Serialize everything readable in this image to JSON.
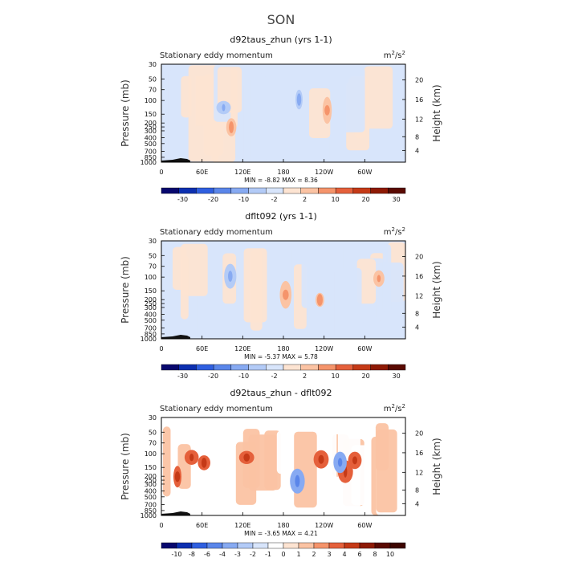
{
  "title": "SON",
  "units_base": "m",
  "units_sup1": "2",
  "units_mid": "/s",
  "units_sup2": "2",
  "colors": {
    "text": "#222222",
    "terrain": "#111111"
  },
  "chart_data": [
    {
      "type": "heatmap",
      "panel_title": "d92taus_zhun (yrs 1-1)",
      "left_label": "Stationary eddy momentum",
      "ylabel": "Pressure (mb)",
      "ylabel_right": "Height (km)",
      "xlim": [
        0,
        360
      ],
      "x_ticks": [
        "0",
        "60E",
        "120E",
        "180",
        "120W",
        "60W"
      ],
      "y_ticks": [
        "30",
        "50",
        "70",
        "100",
        "150",
        "200",
        "250",
        "300",
        "400",
        "500",
        "700",
        "850",
        "1000"
      ],
      "height_ticks": [
        "20",
        "16",
        "12",
        "8",
        "4"
      ],
      "stats_text": "MIN =   -8.82   MAX =   8.36",
      "min": -8.82,
      "max": 8.36,
      "colorbar_labels": [
        "-30",
        "-20",
        "-10",
        "-2",
        "2",
        "10",
        "20",
        "30"
      ],
      "colorbar_colors": [
        "#08086e",
        "#0c2fb0",
        "#2f5fe0",
        "#5a86ea",
        "#87aaf2",
        "#b3cbf7",
        "#d8e5fb",
        "#fde4d2",
        "#fbc3a3",
        "#f5946b",
        "#e5603b",
        "#c53a17",
        "#8e1a05",
        "#5a0a02"
      ]
    },
    {
      "type": "heatmap",
      "panel_title": "dflt092 (yrs 1-1)",
      "left_label": "Stationary eddy momentum",
      "ylabel": "Pressure (mb)",
      "ylabel_right": "Height (km)",
      "xlim": [
        0,
        360
      ],
      "x_ticks": [
        "0",
        "60E",
        "120E",
        "180",
        "120W",
        "60W"
      ],
      "y_ticks": [
        "30",
        "50",
        "70",
        "100",
        "150",
        "200",
        "250",
        "300",
        "400",
        "500",
        "700",
        "850",
        "1000"
      ],
      "height_ticks": [
        "20",
        "16",
        "12",
        "8",
        "4"
      ],
      "stats_text": "MIN =   -5.37   MAX =   5.78",
      "min": -5.37,
      "max": 5.78,
      "colorbar_labels": [
        "-30",
        "-20",
        "-10",
        "-2",
        "2",
        "10",
        "20",
        "30"
      ],
      "colorbar_colors": [
        "#08086e",
        "#0c2fb0",
        "#2f5fe0",
        "#5a86ea",
        "#87aaf2",
        "#b3cbf7",
        "#d8e5fb",
        "#fde4d2",
        "#fbc3a3",
        "#f5946b",
        "#e5603b",
        "#c53a17",
        "#8e1a05",
        "#5a0a02"
      ]
    },
    {
      "type": "heatmap",
      "panel_title": "d92taus_zhun - dflt092",
      "left_label": "Stationary eddy momentum",
      "ylabel": "Pressure (mb)",
      "ylabel_right": "Height (km)",
      "xlim": [
        0,
        360
      ],
      "x_ticks": [
        "0",
        "60E",
        "120E",
        "180",
        "120W",
        "60W"
      ],
      "y_ticks": [
        "30",
        "50",
        "70",
        "100",
        "150",
        "200",
        "250",
        "300",
        "400",
        "500",
        "700",
        "850",
        "1000"
      ],
      "height_ticks": [
        "20",
        "16",
        "12",
        "8",
        "4"
      ],
      "stats_text": "MIN =   -3.65   MAX =   4.21",
      "min": -3.65,
      "max": 4.21,
      "colorbar_labels": [
        "-10",
        "-8",
        "-6",
        "-4",
        "-3",
        "-2",
        "-1",
        "0",
        "1",
        "2",
        "3",
        "4",
        "6",
        "8",
        "10"
      ],
      "colorbar_colors": [
        "#08086e",
        "#0c2fb0",
        "#2f5fe0",
        "#5a86ea",
        "#87aaf2",
        "#b3cbf7",
        "#d8e5fb",
        "#ffffff",
        "#fde4d2",
        "#fbc3a3",
        "#f5946b",
        "#e5603b",
        "#c53a17",
        "#8e1a05",
        "#5a0a02",
        "#3d0500"
      ]
    }
  ]
}
